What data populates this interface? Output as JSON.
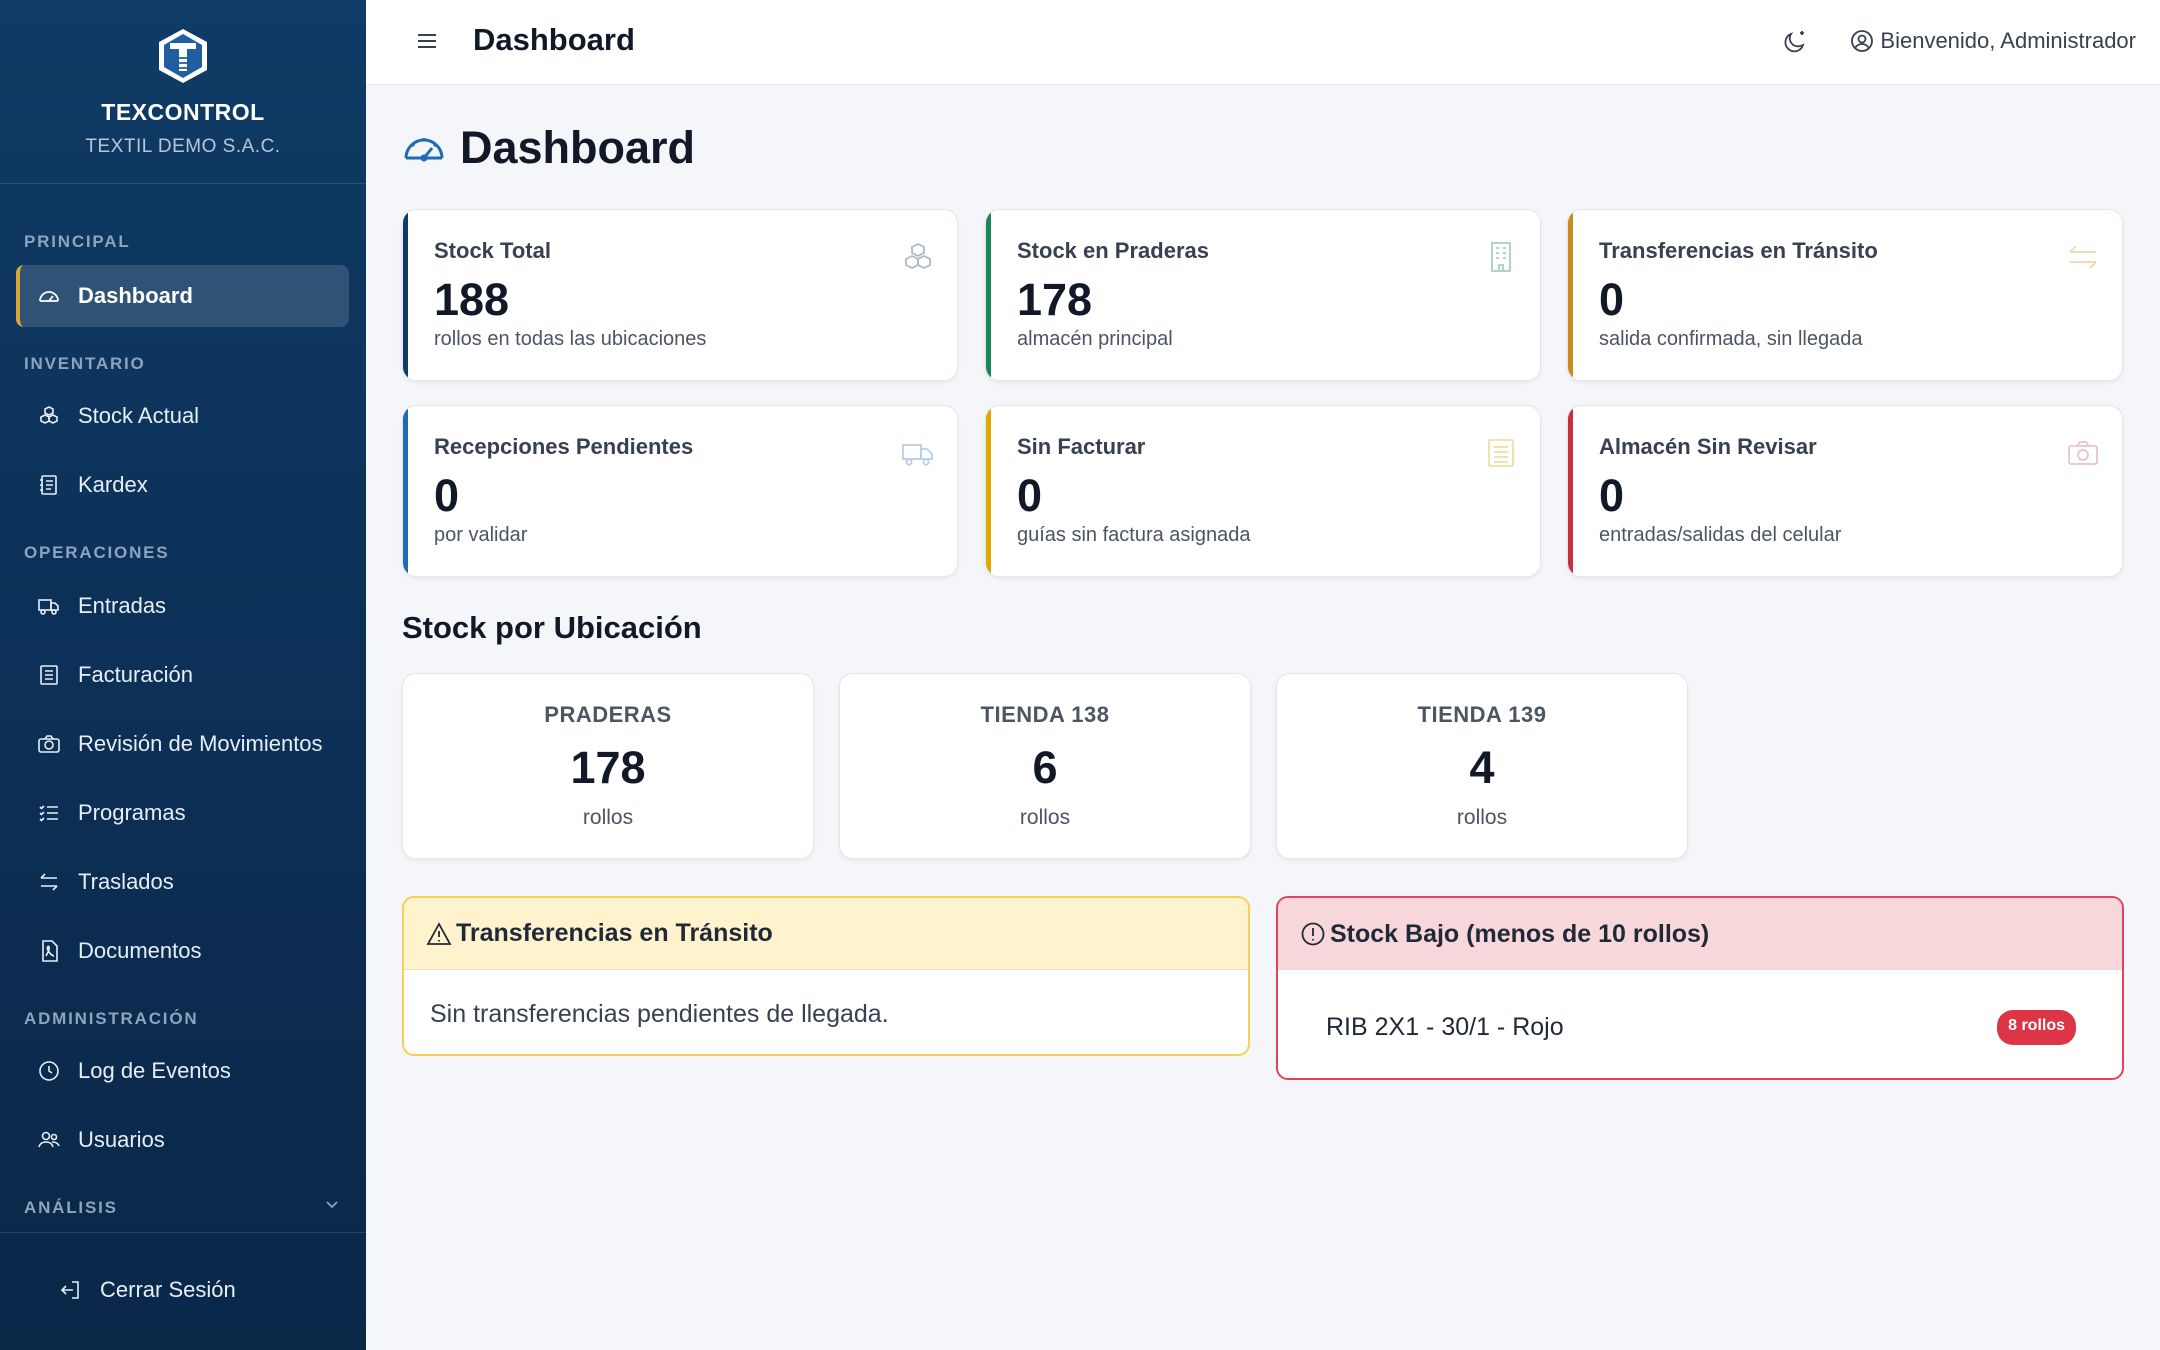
{
  "brand": {
    "name": "TEXCONTROL",
    "company": "TEXTIL DEMO S.A.C."
  },
  "sidebar": {
    "sections": [
      {
        "title": "PRINCIPAL"
      },
      {
        "title": "INVENTARIO"
      },
      {
        "title": "OPERACIONES"
      },
      {
        "title": "ADMINISTRACIÓN"
      },
      {
        "title": "ANÁLISIS"
      }
    ],
    "items": [
      {
        "label": "Dashboard",
        "icon": "gauge-icon",
        "active": true
      },
      {
        "label": "Stock Actual",
        "icon": "boxes-icon"
      },
      {
        "label": "Kardex",
        "icon": "journal-icon"
      },
      {
        "label": "Entradas",
        "icon": "truck-icon"
      },
      {
        "label": "Facturación",
        "icon": "receipt-icon"
      },
      {
        "label": "Revisión de Movimientos",
        "icon": "camera-icon"
      },
      {
        "label": "Programas",
        "icon": "list-check-icon"
      },
      {
        "label": "Traslados",
        "icon": "arrows-exchange-icon"
      },
      {
        "label": "Documentos",
        "icon": "file-pdf-icon"
      },
      {
        "label": "Log de Eventos",
        "icon": "clock-history-icon"
      },
      {
        "label": "Usuarios",
        "icon": "people-icon"
      }
    ],
    "logout_label": "Cerrar Sesión"
  },
  "topbar": {
    "title": "Dashboard",
    "welcome": "Bienvenido, Administrador"
  },
  "main": {
    "heading": "Dashboard",
    "stats": [
      {
        "label": "Stock Total",
        "value": "188",
        "sub": "rollos en todas las ubicaciones",
        "accent": "#0f3b66",
        "icon": "boxes-icon"
      },
      {
        "label": "Stock en Praderas",
        "value": "178",
        "sub": "almacén principal",
        "accent": "#198754",
        "icon": "building-icon"
      },
      {
        "label": "Transferencias en Tránsito",
        "value": "0",
        "sub": "salida confirmada, sin llegada",
        "accent": "#c98a1e",
        "icon": "arrows-exchange-icon"
      },
      {
        "label": "Recepciones Pendientes",
        "value": "0",
        "sub": "por validar",
        "accent": "#1e6bb8",
        "icon": "truck-icon"
      },
      {
        "label": "Sin Facturar",
        "value": "0",
        "sub": "guías sin factura asignada",
        "accent": "#e0a800",
        "icon": "receipt-icon"
      },
      {
        "label": "Almacén Sin Revisar",
        "value": "0",
        "sub": "entradas/salidas del celular",
        "accent": "#c62f3e",
        "icon": "camera-icon"
      }
    ],
    "locations_title": "Stock por Ubicación",
    "locations": [
      {
        "name": "PRADERAS",
        "count": "178",
        "unit": "rollos"
      },
      {
        "name": "TIENDA 138",
        "count": "6",
        "unit": "rollos"
      },
      {
        "name": "TIENDA 139",
        "count": "4",
        "unit": "rollos"
      }
    ],
    "transit_panel": {
      "title": "Transferencias en Tránsito",
      "empty_text": "Sin transferencias pendientes de llegada."
    },
    "low_stock_panel": {
      "title": "Stock Bajo (menos de 10 rollos)",
      "items": [
        {
          "name": "RIB 2X1 - 30/1 - Rojo",
          "badge": "8 rollos"
        }
      ]
    }
  }
}
